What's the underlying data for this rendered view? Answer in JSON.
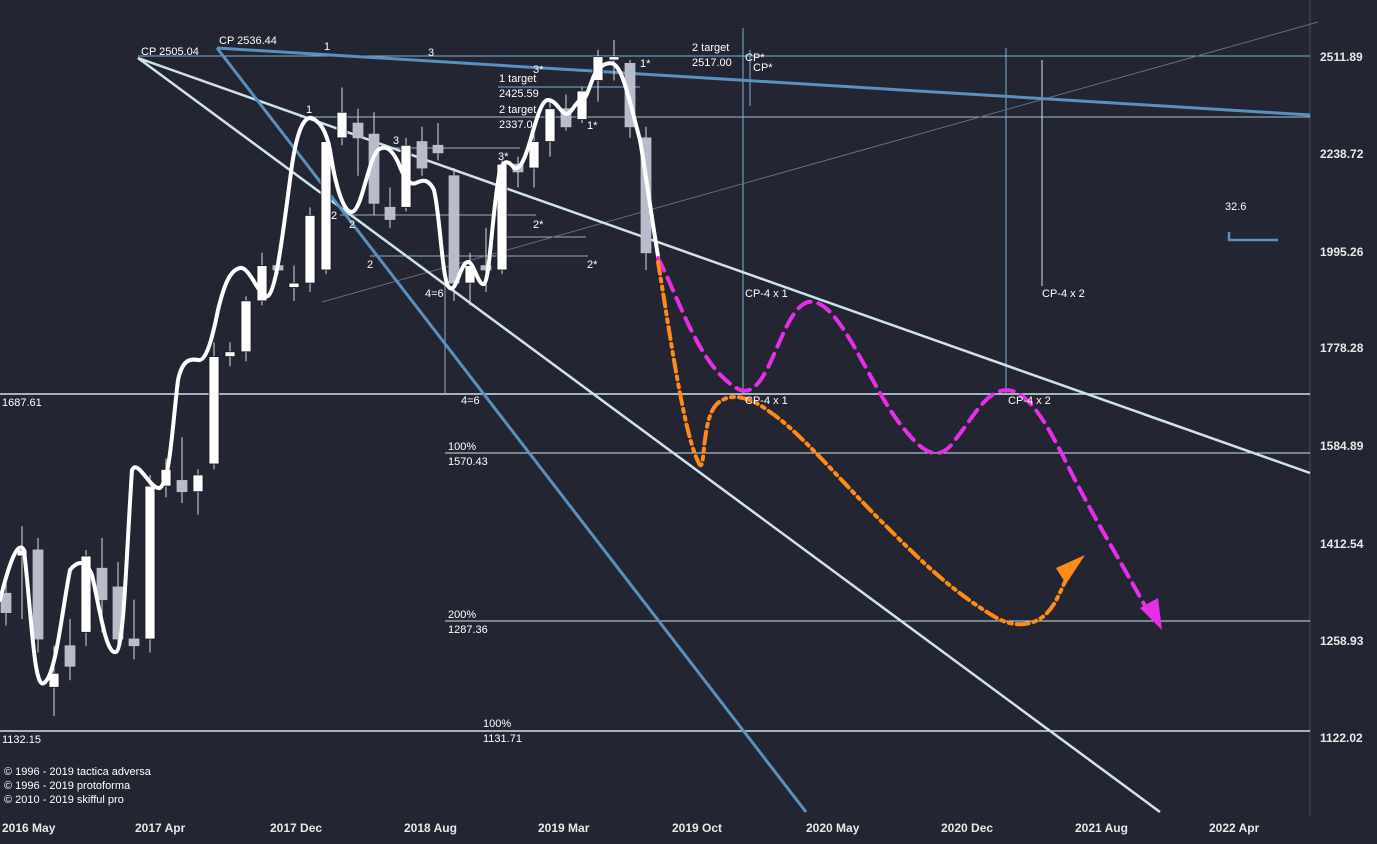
{
  "chart_data": {
    "type": "candlestick",
    "instrument_note": "",
    "y_ticks": [
      2511.89,
      2238.72,
      1995.26,
      1778.28,
      1584.89,
      1412.54,
      1258.93,
      1122.02
    ],
    "x_ticks": [
      "2016 May",
      "2017 Apr",
      "2017 Dec",
      "2018 Aug",
      "2019 Mar",
      "2019 Oct",
      "2020 May",
      "2020 Dec",
      "2021 Aug",
      "2022 Apr"
    ],
    "level_lines": [
      {
        "label": "1687.61",
        "value": 1687.61
      },
      {
        "label": "1132.15",
        "value": 1132.15
      }
    ],
    "fib_levels": [
      {
        "pct": "100%",
        "value_label": "1570.43",
        "value": 1570.43
      },
      {
        "pct": "200%",
        "value_label": "1287.36",
        "value": 1287.36
      },
      {
        "pct": "100%",
        "value_label": "1131.71",
        "value": 1131.71
      }
    ],
    "targets": [
      {
        "text": "1 target",
        "value_text": "2425.59"
      },
      {
        "text": "2 target",
        "value_text": "2337.0"
      },
      {
        "text": "2 target",
        "value_text": "2517.00"
      }
    ],
    "cp_labels": [
      "CP 2505.04",
      "CP 2536.44",
      "CP*",
      "CP*"
    ],
    "projection_labels": [
      "CP-4 x 1",
      "CP-4 x 1",
      "CP-4 x 2",
      "CP-4 x 2"
    ],
    "wave_labels": [
      "1",
      "3",
      "1",
      "2",
      "2",
      "3",
      "2",
      "4=6",
      "4=6",
      "3*",
      "2*",
      "2*",
      "3*",
      "1*",
      "1*"
    ],
    "indicator_value": "32.6",
    "candles": [
      {
        "o": 1330,
        "h": 1360,
        "l": 1280,
        "c": 1300
      },
      {
        "o": 1390,
        "h": 1440,
        "l": 1290,
        "c": 1400
      },
      {
        "o": 1400,
        "h": 1420,
        "l": 1240,
        "c": 1260
      },
      {
        "o": 1190,
        "h": 1250,
        "l": 1150,
        "c": 1210
      },
      {
        "o": 1250,
        "h": 1290,
        "l": 1200,
        "c": 1220
      },
      {
        "o": 1270,
        "h": 1400,
        "l": 1250,
        "c": 1390
      },
      {
        "o": 1370,
        "h": 1420,
        "l": 1270,
        "c": 1320
      },
      {
        "o": 1340,
        "h": 1380,
        "l": 1250,
        "c": 1260
      },
      {
        "o": 1260,
        "h": 1320,
        "l": 1230,
        "c": 1250
      },
      {
        "o": 1260,
        "h": 1530,
        "l": 1240,
        "c": 1510
      },
      {
        "o": 1510,
        "h": 1560,
        "l": 1490,
        "c": 1540
      },
      {
        "o": 1520,
        "h": 1600,
        "l": 1480,
        "c": 1500
      },
      {
        "o": 1500,
        "h": 1540,
        "l": 1460,
        "c": 1530
      },
      {
        "o": 1550,
        "h": 1790,
        "l": 1540,
        "c": 1760
      },
      {
        "o": 1760,
        "h": 1790,
        "l": 1740,
        "c": 1770
      },
      {
        "o": 1770,
        "h": 1890,
        "l": 1750,
        "c": 1880
      },
      {
        "o": 1880,
        "h": 1990,
        "l": 1870,
        "c": 1960
      },
      {
        "o": 1960,
        "h": 1990,
        "l": 1940,
        "c": 1950
      },
      {
        "o": 1910,
        "h": 1960,
        "l": 1880,
        "c": 1920
      },
      {
        "o": 1920,
        "h": 2100,
        "l": 1900,
        "c": 2080
      },
      {
        "o": 1950,
        "h": 2280,
        "l": 1940,
        "c": 2270
      },
      {
        "o": 2280,
        "h": 2420,
        "l": 2260,
        "c": 2350
      },
      {
        "o": 2320,
        "h": 2360,
        "l": 2180,
        "c": 2280
      },
      {
        "o": 2290,
        "h": 2350,
        "l": 2080,
        "c": 2110
      },
      {
        "o": 2100,
        "h": 2150,
        "l": 2050,
        "c": 2070
      },
      {
        "o": 2100,
        "h": 2280,
        "l": 2090,
        "c": 2260
      },
      {
        "o": 2270,
        "h": 2310,
        "l": 2180,
        "c": 2200
      },
      {
        "o": 2260,
        "h": 2320,
        "l": 2220,
        "c": 2240
      },
      {
        "o": 2180,
        "h": 2200,
        "l": 1880,
        "c": 1920
      },
      {
        "o": 1920,
        "h": 1990,
        "l": 1870,
        "c": 1960
      },
      {
        "o": 1960,
        "h": 2050,
        "l": 1900,
        "c": 1950
      },
      {
        "o": 1950,
        "h": 2220,
        "l": 1940,
        "c": 2210
      },
      {
        "o": 2210,
        "h": 2230,
        "l": 2150,
        "c": 2190
      },
      {
        "o": 2200,
        "h": 2290,
        "l": 2150,
        "c": 2270
      },
      {
        "o": 2270,
        "h": 2380,
        "l": 2230,
        "c": 2360
      },
      {
        "o": 2360,
        "h": 2400,
        "l": 2300,
        "c": 2310
      },
      {
        "o": 2330,
        "h": 2420,
        "l": 2320,
        "c": 2410
      },
      {
        "o": 2440,
        "h": 2530,
        "l": 2380,
        "c": 2510
      },
      {
        "o": 2500,
        "h": 2560,
        "l": 2440,
        "c": 2510
      },
      {
        "o": 2490,
        "h": 2500,
        "l": 2280,
        "c": 2310
      },
      {
        "o": 2280,
        "h": 2310,
        "l": 1950,
        "c": 1990
      }
    ]
  },
  "copyright": [
    "© 1996 - 2019 tactica adversa",
    "© 1996 - 2019 protoforma",
    "© 2010 - 2019 skifful pro"
  ],
  "colors": {
    "background": "#232632",
    "light_line": "#cfe3ec",
    "steel_line": "#5b8fbd",
    "magenta": "#e62ee6",
    "orange": "#ff8a1a",
    "candle_up": "#ffffff",
    "candle_down": "#b8bccb"
  }
}
